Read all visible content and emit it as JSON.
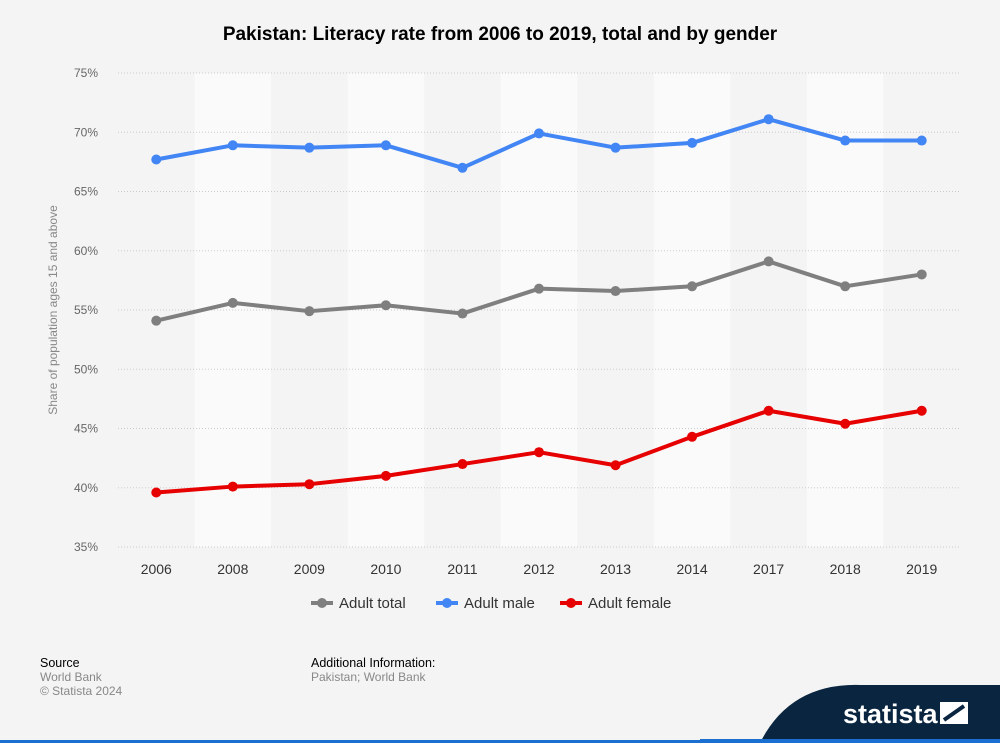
{
  "chart_data": {
    "type": "line",
    "title": "Pakistan: Literacy rate from 2006 to 2019, total and by gender",
    "ylabel": "Share of population ages 15 and above",
    "xlabel": "",
    "ylim": [
      35,
      75
    ],
    "yticks": [
      35,
      40,
      45,
      50,
      55,
      60,
      65,
      70,
      75
    ],
    "ytick_labels": [
      "35%",
      "40%",
      "45%",
      "50%",
      "55%",
      "60%",
      "65%",
      "70%",
      "75%"
    ],
    "categories": [
      "2006",
      "2008",
      "2009",
      "2010",
      "2011",
      "2012",
      "2013",
      "2014",
      "2017",
      "2018",
      "2019"
    ],
    "grid": true,
    "legend_position": "bottom",
    "series": [
      {
        "name": "Adult total",
        "color": "#7f7f7f",
        "values": [
          54.1,
          55.6,
          54.9,
          55.4,
          54.7,
          56.8,
          56.6,
          57.0,
          59.1,
          57.0,
          58.0
        ]
      },
      {
        "name": "Adult male",
        "color": "#4285f4",
        "values": [
          67.7,
          68.9,
          68.7,
          68.9,
          67.0,
          69.9,
          68.7,
          69.1,
          71.1,
          69.3,
          69.3
        ]
      },
      {
        "name": "Adult female",
        "color": "#e60000",
        "values": [
          39.6,
          40.1,
          40.3,
          41.0,
          42.0,
          43.0,
          41.9,
          44.3,
          46.5,
          45.4,
          46.5
        ]
      }
    ]
  },
  "footer": {
    "source_label": "Source",
    "source": "World Bank",
    "copyright": "© Statista 2024",
    "info_label": "Additional Information:",
    "info": "Pakistan; World Bank"
  },
  "brand": "statista"
}
